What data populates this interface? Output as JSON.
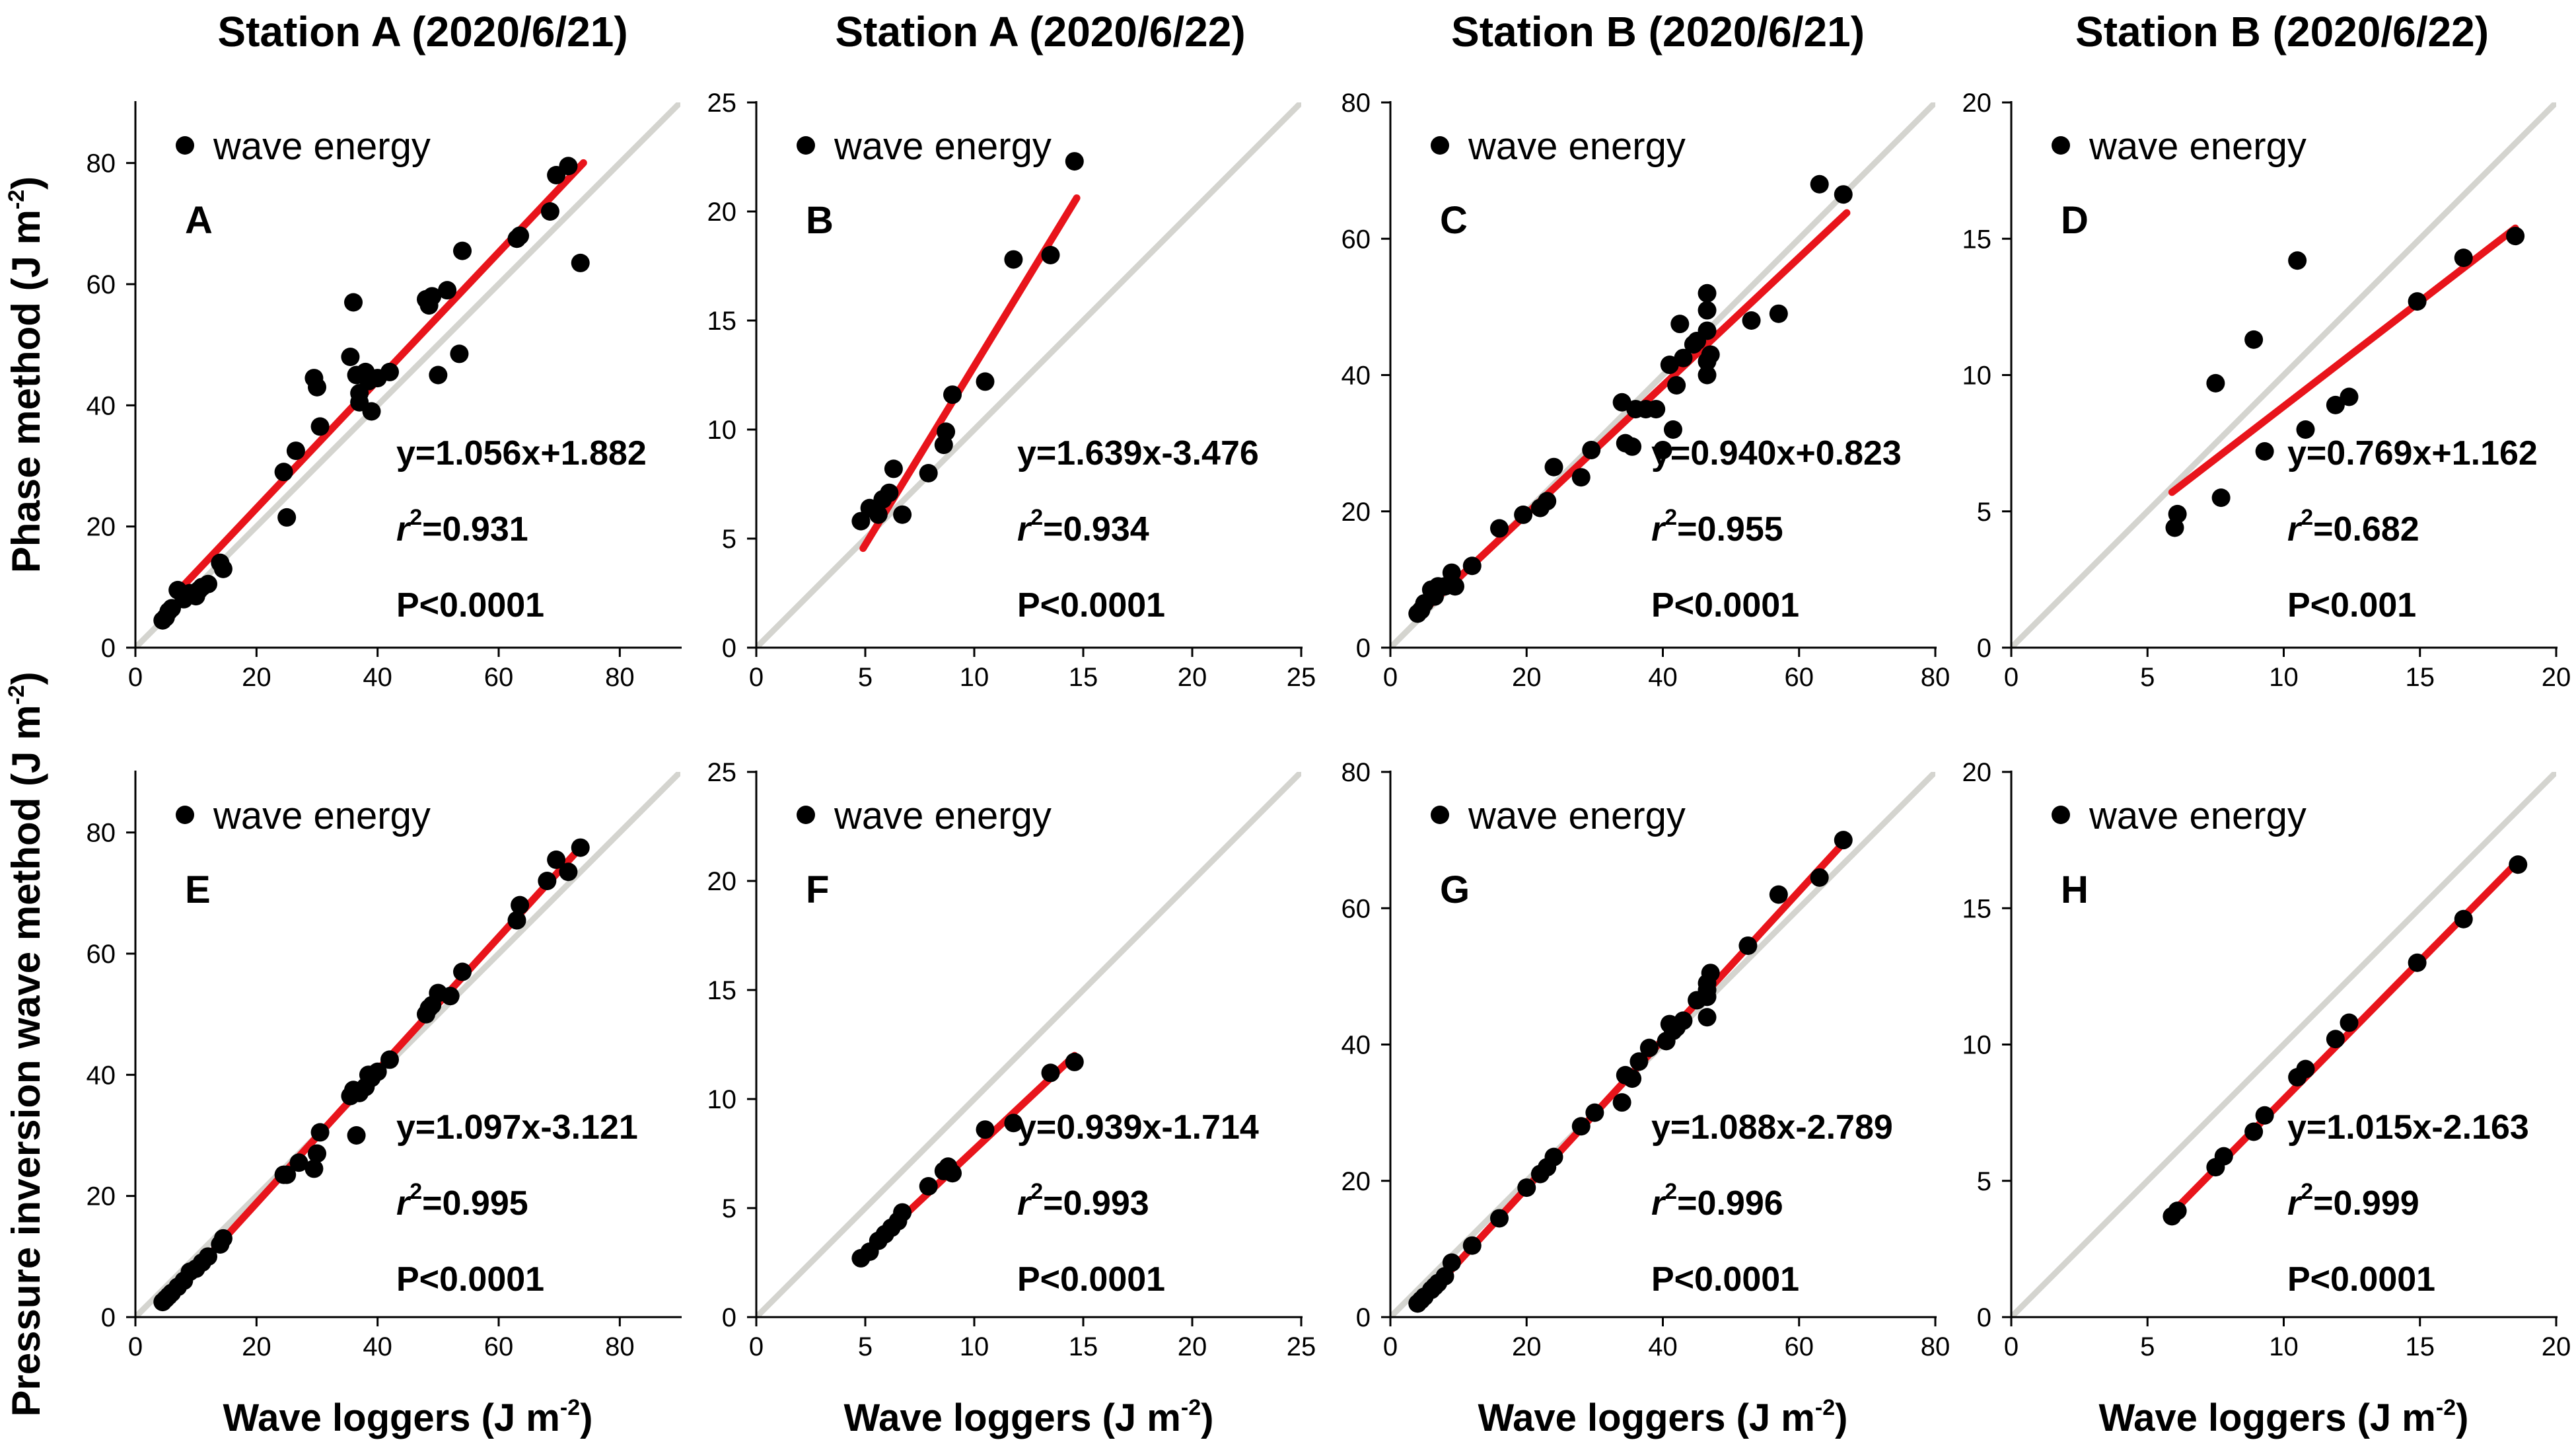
{
  "figure": {
    "column_titles": [
      "Station A (2020/6/21)",
      "Station A (2020/6/22)",
      "Station B (2020/6/21)",
      "Station B (2020/6/22)"
    ],
    "row_ylabels": [
      {
        "text": "Phase method (J m",
        "sup": "-2",
        "end": ")"
      },
      {
        "text": "Pressure inversion wave method (J m",
        "sup": "-2",
        "end": ")"
      }
    ],
    "xlabel": {
      "text": "Wave loggers (J m",
      "sup": "-2",
      "end": ")"
    },
    "legend_label": "wave energy",
    "colors": {
      "points": "#000000",
      "fit": "#e8141b",
      "identity": "#d4d4cf",
      "axis": "#000000"
    }
  },
  "chart_data": [
    {
      "type": "scatter",
      "panel": "A",
      "title": "Station A (2020/6/21)",
      "xlim": [
        0,
        90
      ],
      "ylim": [
        0,
        90
      ],
      "xticks": [
        0,
        20,
        40,
        60,
        80
      ],
      "yticks": [
        0,
        20,
        40,
        60,
        80
      ],
      "equation": "y=1.056x+1.882",
      "r2_value": "=0.931",
      "p_text": "P<0.0001",
      "fit": {
        "slope": 1.056,
        "intercept": 1.882,
        "x_range": [
          7,
          74
        ]
      },
      "points": [
        [
          4.5,
          4.5
        ],
        [
          5,
          5
        ],
        [
          5.5,
          6
        ],
        [
          6,
          6.5
        ],
        [
          7,
          9.5
        ],
        [
          8,
          8
        ],
        [
          9,
          9
        ],
        [
          10,
          8.5
        ],
        [
          10.5,
          9.5
        ],
        [
          11,
          10
        ],
        [
          12,
          10.5
        ],
        [
          14,
          14
        ],
        [
          14.5,
          13
        ],
        [
          24.5,
          29
        ],
        [
          25,
          21.5
        ],
        [
          26.5,
          32.5
        ],
        [
          29.5,
          44.5
        ],
        [
          30,
          43
        ],
        [
          30.5,
          36.5
        ],
        [
          35.5,
          48
        ],
        [
          36,
          57
        ],
        [
          36.5,
          45
        ],
        [
          37,
          42
        ],
        [
          37,
          40.5
        ],
        [
          38,
          45.5
        ],
        [
          38.5,
          44
        ],
        [
          39,
          39
        ],
        [
          40,
          44.5
        ],
        [
          42,
          45.5
        ],
        [
          48,
          57.5
        ],
        [
          48.5,
          56.5
        ],
        [
          49,
          58
        ],
        [
          50,
          45
        ],
        [
          51.5,
          59
        ],
        [
          53.5,
          48.5
        ],
        [
          54,
          65.5
        ],
        [
          63,
          67.5
        ],
        [
          63.5,
          68
        ],
        [
          68.5,
          72
        ],
        [
          69.5,
          78
        ],
        [
          71.5,
          79.5
        ],
        [
          73.5,
          63.5
        ]
      ]
    },
    {
      "type": "scatter",
      "panel": "B",
      "title": "Station A (2020/6/22)",
      "xlim": [
        0,
        25
      ],
      "ylim": [
        0,
        25
      ],
      "xticks": [
        0,
        5,
        10,
        15,
        20,
        25
      ],
      "yticks": [
        0,
        5,
        10,
        15,
        20,
        25
      ],
      "equation": "y=1.639x-3.476",
      "r2_value": "=0.934",
      "p_text": "P<0.0001",
      "fit": {
        "slope": 1.639,
        "intercept": -3.476,
        "x_range": [
          4.9,
          14.7
        ]
      },
      "points": [
        [
          4.8,
          5.8
        ],
        [
          5.2,
          6.4
        ],
        [
          5.6,
          6.1
        ],
        [
          5.8,
          6.8
        ],
        [
          6.1,
          7.1
        ],
        [
          6.3,
          8.2
        ],
        [
          6.7,
          6.1
        ],
        [
          7.9,
          8
        ],
        [
          8.6,
          9.3
        ],
        [
          8.7,
          9.9
        ],
        [
          9,
          11.6
        ],
        [
          10.5,
          12.2
        ],
        [
          11.8,
          17.8
        ],
        [
          13.5,
          18
        ],
        [
          14.6,
          22.3
        ]
      ]
    },
    {
      "type": "scatter",
      "panel": "C",
      "title": "Station B (2020/6/21)",
      "xlim": [
        0,
        80
      ],
      "ylim": [
        0,
        80
      ],
      "xticks": [
        0,
        20,
        40,
        60,
        80
      ],
      "yticks": [
        0,
        20,
        40,
        60,
        80
      ],
      "equation": "y=0.940x+0.823",
      "r2_value": "=0.955",
      "p_text": "P<0.0001",
      "fit": {
        "slope": 0.94,
        "intercept": 0.823,
        "x_range": [
          4,
          67
        ]
      },
      "points": [
        [
          4,
          5
        ],
        [
          4.5,
          5.5
        ],
        [
          5,
          6.5
        ],
        [
          6,
          8.5
        ],
        [
          6.5,
          7.5
        ],
        [
          7,
          9
        ],
        [
          8,
          9
        ],
        [
          9,
          11
        ],
        [
          9.5,
          9
        ],
        [
          12,
          12
        ],
        [
          16,
          17.5
        ],
        [
          19.5,
          19.5
        ],
        [
          22,
          20.5
        ],
        [
          23,
          21.5
        ],
        [
          24,
          26.5
        ],
        [
          28,
          25
        ],
        [
          29.5,
          29
        ],
        [
          34,
          36
        ],
        [
          34.5,
          30
        ],
        [
          35.5,
          29.5
        ],
        [
          36,
          35
        ],
        [
          37.5,
          35
        ],
        [
          39,
          35
        ],
        [
          40,
          29
        ],
        [
          41,
          41.5
        ],
        [
          41.5,
          32
        ],
        [
          42,
          38.5
        ],
        [
          42.5,
          47.5
        ],
        [
          43,
          42.5
        ],
        [
          44.5,
          44.5
        ],
        [
          45,
          45
        ],
        [
          46.5,
          52
        ],
        [
          46.5,
          49.5
        ],
        [
          46.5,
          46.5
        ],
        [
          46.5,
          42
        ],
        [
          46.5,
          40
        ],
        [
          47,
          43
        ],
        [
          53,
          48
        ],
        [
          57,
          49
        ],
        [
          63,
          68
        ],
        [
          66.5,
          66.5
        ]
      ]
    },
    {
      "type": "scatter",
      "panel": "D",
      "title": "Station B (2020/6/22)",
      "xlim": [
        0,
        20
      ],
      "ylim": [
        0,
        20
      ],
      "xticks": [
        0,
        5,
        10,
        15,
        20
      ],
      "yticks": [
        0,
        5,
        10,
        15,
        20
      ],
      "equation": "y=0.769x+1.162",
      "r2_value": "=0.682",
      "p_text": "P<0.001",
      "fit": {
        "slope": 0.769,
        "intercept": 1.162,
        "x_range": [
          5.9,
          18.5
        ]
      },
      "points": [
        [
          6,
          4.4
        ],
        [
          6.1,
          4.9
        ],
        [
          7.5,
          9.7
        ],
        [
          7.7,
          5.5
        ],
        [
          8.9,
          11.3
        ],
        [
          9.3,
          7.2
        ],
        [
          10.5,
          14.2
        ],
        [
          10.8,
          8
        ],
        [
          11.9,
          8.9
        ],
        [
          12.4,
          9.2
        ],
        [
          14.9,
          12.7
        ],
        [
          16.6,
          14.3
        ],
        [
          18.5,
          15.1
        ]
      ]
    },
    {
      "type": "scatter",
      "panel": "E",
      "title": "Station A (2020/6/21)",
      "xlim": [
        0,
        90
      ],
      "ylim": [
        0,
        90
      ],
      "xticks": [
        0,
        20,
        40,
        60,
        80
      ],
      "yticks": [
        0,
        20,
        40,
        60,
        80
      ],
      "equation": "y=1.097x-3.121",
      "r2_value": "=0.995",
      "p_text": "P<0.0001",
      "fit": {
        "slope": 1.097,
        "intercept": -3.121,
        "x_range": [
          4.5,
          74
        ]
      },
      "points": [
        [
          4.5,
          2.5
        ],
        [
          5,
          3
        ],
        [
          5.5,
          3.5
        ],
        [
          6,
          4
        ],
        [
          7,
          5
        ],
        [
          8,
          6
        ],
        [
          9,
          7.5
        ],
        [
          10,
          8
        ],
        [
          11,
          9
        ],
        [
          12,
          10
        ],
        [
          14,
          12
        ],
        [
          14.5,
          13
        ],
        [
          24.5,
          23.5
        ],
        [
          25,
          23.5
        ],
        [
          27,
          25.5
        ],
        [
          29.5,
          24.5
        ],
        [
          30,
          27
        ],
        [
          30.5,
          30.5
        ],
        [
          35.5,
          36.5
        ],
        [
          36,
          37.5
        ],
        [
          36.5,
          30
        ],
        [
          37,
          37
        ],
        [
          38,
          38
        ],
        [
          38.5,
          40
        ],
        [
          39,
          39.5
        ],
        [
          40,
          40.5
        ],
        [
          42,
          42.5
        ],
        [
          48,
          50
        ],
        [
          48.5,
          51
        ],
        [
          49,
          51.5
        ],
        [
          50,
          53.5
        ],
        [
          52,
          53
        ],
        [
          54,
          57
        ],
        [
          63,
          65.5
        ],
        [
          63.5,
          68
        ],
        [
          68,
          72
        ],
        [
          69.5,
          75.5
        ],
        [
          71.5,
          73.5
        ],
        [
          73.5,
          77.5
        ]
      ]
    },
    {
      "type": "scatter",
      "panel": "F",
      "title": "Station A (2020/6/22)",
      "xlim": [
        0,
        25
      ],
      "ylim": [
        0,
        25
      ],
      "xticks": [
        0,
        5,
        10,
        15,
        20,
        25
      ],
      "yticks": [
        0,
        5,
        10,
        15,
        20,
        25
      ],
      "equation": "y=0.939x-1.714",
      "r2_value": "=0.993",
      "p_text": "P<0.0001",
      "fit": {
        "slope": 0.939,
        "intercept": -1.714,
        "x_range": [
          4.8,
          14.6
        ]
      },
      "points": [
        [
          4.8,
          2.7
        ],
        [
          5.2,
          3
        ],
        [
          5.6,
          3.5
        ],
        [
          5.9,
          3.8
        ],
        [
          6.2,
          4.1
        ],
        [
          6.5,
          4.4
        ],
        [
          6.7,
          4.8
        ],
        [
          7.9,
          6
        ],
        [
          8.6,
          6.7
        ],
        [
          8.8,
          6.9
        ],
        [
          9,
          6.6
        ],
        [
          10.5,
          8.6
        ],
        [
          11.8,
          8.9
        ],
        [
          13.5,
          11.2
        ],
        [
          14.6,
          11.7
        ]
      ]
    },
    {
      "type": "scatter",
      "panel": "G",
      "title": "Station B (2020/6/21)",
      "xlim": [
        0,
        80
      ],
      "ylim": [
        0,
        80
      ],
      "xticks": [
        0,
        20,
        40,
        60,
        80
      ],
      "yticks": [
        0,
        20,
        40,
        60,
        80
      ],
      "equation": "y=1.088x-2.789",
      "r2_value": "=0.996",
      "p_text": "P<0.0001",
      "fit": {
        "slope": 1.088,
        "intercept": -2.789,
        "x_range": [
          4,
          67
        ]
      },
      "points": [
        [
          4,
          2
        ],
        [
          4.5,
          2.5
        ],
        [
          5,
          3
        ],
        [
          6,
          4
        ],
        [
          6.5,
          4.5
        ],
        [
          7,
          5
        ],
        [
          8,
          6
        ],
        [
          9,
          8
        ],
        [
          12,
          10.5
        ],
        [
          16,
          14.5
        ],
        [
          20,
          19
        ],
        [
          22,
          21
        ],
        [
          23,
          22
        ],
        [
          24,
          23.5
        ],
        [
          28,
          28
        ],
        [
          30,
          30
        ],
        [
          34,
          31.5
        ],
        [
          34.5,
          35.5
        ],
        [
          35.5,
          35
        ],
        [
          36.5,
          37.5
        ],
        [
          38,
          39.5
        ],
        [
          40.5,
          40.5
        ],
        [
          41,
          43
        ],
        [
          41.5,
          42
        ],
        [
          42,
          42.5
        ],
        [
          43,
          43.5
        ],
        [
          45,
          46.5
        ],
        [
          46.5,
          48
        ],
        [
          46.5,
          49
        ],
        [
          46.5,
          47
        ],
        [
          46.5,
          44
        ],
        [
          47,
          50.5
        ],
        [
          52.5,
          54.5
        ],
        [
          57,
          62
        ],
        [
          63,
          64.5
        ],
        [
          66.5,
          70
        ]
      ]
    },
    {
      "type": "scatter",
      "panel": "H",
      "title": "Station B (2020/6/22)",
      "xlim": [
        0,
        20
      ],
      "ylim": [
        0,
        20
      ],
      "xticks": [
        0,
        5,
        10,
        15,
        20
      ],
      "yticks": [
        0,
        5,
        10,
        15,
        20
      ],
      "equation": "y=1.015x-2.163",
      "r2_value": "=0.999",
      "p_text": "P<0.0001",
      "fit": {
        "slope": 1.015,
        "intercept": -2.163,
        "x_range": [
          5.9,
          18.6
        ]
      },
      "points": [
        [
          5.9,
          3.7
        ],
        [
          6.1,
          3.9
        ],
        [
          7.5,
          5.5
        ],
        [
          7.8,
          5.9
        ],
        [
          8.9,
          6.8
        ],
        [
          9.3,
          7.4
        ],
        [
          10.5,
          8.8
        ],
        [
          10.8,
          9.1
        ],
        [
          11.9,
          10.2
        ],
        [
          12.4,
          10.8
        ],
        [
          14.9,
          13
        ],
        [
          16.6,
          14.6
        ],
        [
          18.6,
          16.6
        ]
      ]
    }
  ]
}
